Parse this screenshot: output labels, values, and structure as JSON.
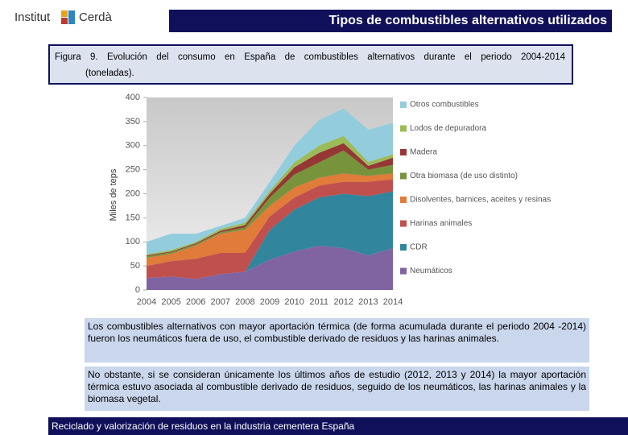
{
  "logo": {
    "left": "Institut",
    "right": "Cerdà"
  },
  "header": {
    "title": "Tipos de combustibles alternativos utilizados"
  },
  "figure": {
    "caption": "Figura 9. Evolución del consumo en España de combustibles alternativos durante el periodo 2004-2014",
    "caption_unit": "(toneladas)."
  },
  "chart_data": {
    "type": "stacked-area",
    "y_label": "Miles de teps",
    "categories": [
      "2004",
      "2005",
      "2006",
      "2007",
      "2008",
      "2009",
      "2010",
      "2011",
      "2012",
      "2013",
      "2014"
    ],
    "ylim": [
      0,
      400
    ],
    "yticks": [
      0,
      50,
      100,
      150,
      200,
      250,
      300,
      350,
      400
    ],
    "series": [
      {
        "name": "Neumáticos",
        "color": "#8064a2",
        "values": [
          25,
          28,
          23,
          33,
          38,
          63,
          80,
          92,
          87,
          72,
          87
        ]
      },
      {
        "name": "CDR",
        "color": "#31859c",
        "values": [
          0,
          0,
          0,
          0,
          0,
          62,
          87,
          100,
          113,
          123,
          118
        ]
      },
      {
        "name": "Harinas animales",
        "color": "#c0504d",
        "values": [
          25,
          32,
          42,
          44,
          39,
          28,
          25,
          25,
          25,
          30,
          25
        ]
      },
      {
        "name": "Disolventes, barnices, aceites y resinas",
        "color": "#e07b39",
        "values": [
          17,
          15,
          27,
          40,
          48,
          22,
          21,
          16,
          17,
          12,
          12
        ]
      },
      {
        "name": "Otra biomasa (de uso distinto)",
        "color": "#77933c",
        "values": [
          3,
          3,
          3,
          3,
          5,
          17,
          27,
          32,
          48,
          13,
          18
        ]
      },
      {
        "name": "Madera",
        "color": "#953735",
        "values": [
          2,
          2,
          2,
          3,
          5,
          8,
          15,
          20,
          15,
          8,
          15
        ]
      },
      {
        "name": "Lodos de depuradora",
        "color": "#9bbb59",
        "values": [
          2,
          3,
          3,
          4,
          5,
          6,
          10,
          15,
          15,
          8,
          7
        ]
      },
      {
        "name": "Otros combustibles",
        "color": "#93cddd",
        "values": [
          26,
          34,
          17,
          6,
          10,
          18,
          35,
          53,
          57,
          67,
          65
        ]
      }
    ]
  },
  "paragraphs": [
    "Los combustibles alternativos con mayor aportación térmica (de forma acumulada durante el periodo 2004 -2014) fueron los neumáticos fuera de uso, el combustible derivado de residuos y las harinas animales.",
    "No obstante, si se consideran únicamente los últimos años de estudio (2012, 2013 y 2014) la mayor aportación térmica estuvo asociada al combustible derivado de residuos, seguido de los neumáticos, las harinas animales y la biomasa vegetal."
  ],
  "footer": {
    "text": "Reciclado y valorización de residuos en la industria cementera España"
  }
}
